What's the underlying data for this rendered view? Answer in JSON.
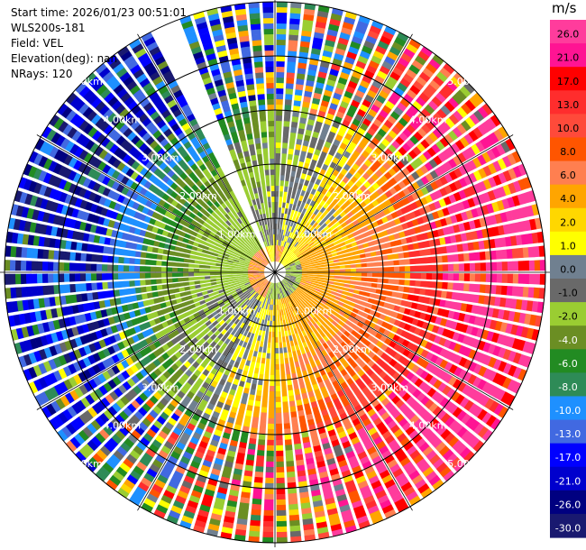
{
  "header": {
    "start_time": "Start time: 2026/01/23 00:51:01",
    "station": "WLS200s-181",
    "field": "Field: VEL",
    "elevation": "Elevation(deg): nan",
    "nrays": "NRays: 120"
  },
  "colorbar": {
    "unit": "m/s",
    "ticks": [
      "26.0",
      "21.0",
      "17.0",
      "13.0",
      "10.0",
      "8.0",
      "6.0",
      "4.0",
      "2.0",
      "1.0",
      "0.0",
      "-1.0",
      "-2.0",
      "-4.0",
      "-6.0",
      "-8.0",
      "-10.0",
      "-13.0",
      "-17.0",
      "-21.0",
      "-26.0",
      "-30.0"
    ],
    "colors": [
      "#ff3c9c",
      "#ff1493",
      "#ff0000",
      "#ff2d2d",
      "#ff4a3a",
      "#ff5500",
      "#ff7f50",
      "#ffa500",
      "#ffd700",
      "#ffff00",
      "#708090",
      "#696969",
      "#9acd32",
      "#6b8e23",
      "#228b22",
      "#2e8b57",
      "#1e90ff",
      "#4169e1",
      "#0000ff",
      "#0000cd",
      "#000080",
      "#191970"
    ]
  },
  "rings": {
    "labels": [
      "1.00km",
      "2.00km",
      "3.00km",
      "4.00km",
      "5.00km"
    ]
  },
  "icons": {
    "radar": "radar-ppi-icon"
  }
}
